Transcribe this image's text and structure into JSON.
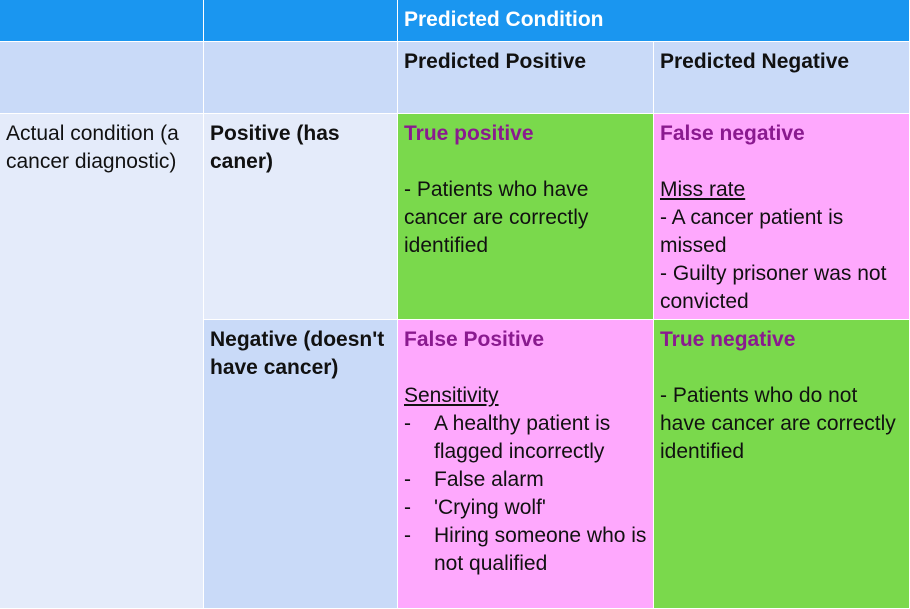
{
  "header": {
    "predicted_condition": "Predicted Condition",
    "predicted_positive": "Predicted Positive",
    "predicted_negative": "Predicted Negative"
  },
  "rows": {
    "actual_condition": "Actual condition (a cancer diagnostic)",
    "positive_label": "Positive (has caner)",
    "negative_label": "Negative (doesn't have cancer)"
  },
  "cells": {
    "tp": {
      "title": "True positive",
      "text": "- Patients who have cancer are correctly identified",
      "color": "#7ad94c"
    },
    "fn": {
      "title": "False negative",
      "subtitle": "Miss rate",
      "lines": [
        "- A cancer patient is missed",
        "- Guilty prisoner was not convicted"
      ],
      "color": "#fea8fd"
    },
    "fp": {
      "title": "False Positive",
      "subtitle": "Sensitivity",
      "dash": "-",
      "items": [
        "A healthy patient is flagged incorrectly",
        "False alarm",
        "'Crying wolf'",
        "Hiring someone who is not qualified"
      ],
      "color": "#fea8fd"
    },
    "tn": {
      "title": "True negative",
      "text": "- Patients who do not have cancer are correctly identified",
      "color": "#7ad94c"
    }
  },
  "colors": {
    "header_blue": "#1a96f0",
    "header_light": "#c9daf8",
    "row_light": "#e4ebfa",
    "title_purple": "#8a1a8f"
  }
}
